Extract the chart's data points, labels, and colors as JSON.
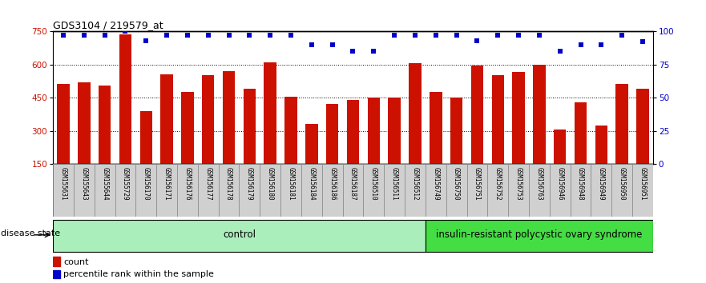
{
  "title": "GDS3104 / 219579_at",
  "samples": [
    "GSM155631",
    "GSM155643",
    "GSM155644",
    "GSM155729",
    "GSM156170",
    "GSM156171",
    "GSM156176",
    "GSM156177",
    "GSM156178",
    "GSM156179",
    "GSM156180",
    "GSM156181",
    "GSM156184",
    "GSM156186",
    "GSM156187",
    "GSM156510",
    "GSM156511",
    "GSM156512",
    "GSM156749",
    "GSM156750",
    "GSM156751",
    "GSM156752",
    "GSM156753",
    "GSM156763",
    "GSM156946",
    "GSM156948",
    "GSM156949",
    "GSM156950",
    "GSM156951"
  ],
  "counts": [
    510,
    520,
    505,
    735,
    390,
    555,
    475,
    550,
    570,
    490,
    610,
    455,
    330,
    420,
    440,
    450,
    450,
    605,
    475,
    450,
    595,
    550,
    565,
    600,
    305,
    430,
    325,
    510,
    490
  ],
  "percentiles": [
    97,
    97,
    97,
    100,
    93,
    97,
    97,
    97,
    97,
    97,
    97,
    97,
    90,
    90,
    85,
    85,
    97,
    97,
    97,
    97,
    93,
    97,
    97,
    97,
    85,
    90,
    90,
    97,
    92
  ],
  "bar_color": "#CC1100",
  "dot_color": "#0000CC",
  "ylim_left": [
    150,
    750
  ],
  "ylim_right": [
    0,
    100
  ],
  "yticks_left": [
    150,
    300,
    450,
    600,
    750
  ],
  "yticks_right": [
    0,
    25,
    50,
    75,
    100
  ],
  "group_boundary": 18,
  "group1_label": "control",
  "group2_label": "insulin-resistant polycystic ovary syndrome",
  "group1_color": "#AAEEBB",
  "group2_color": "#44DD44",
  "disease_label": "disease state",
  "legend_count": "count",
  "legend_pct": "percentile rank within the sample",
  "xlabel_bg": "#D8D8D8",
  "tick_box_color": "#D0D0D0"
}
